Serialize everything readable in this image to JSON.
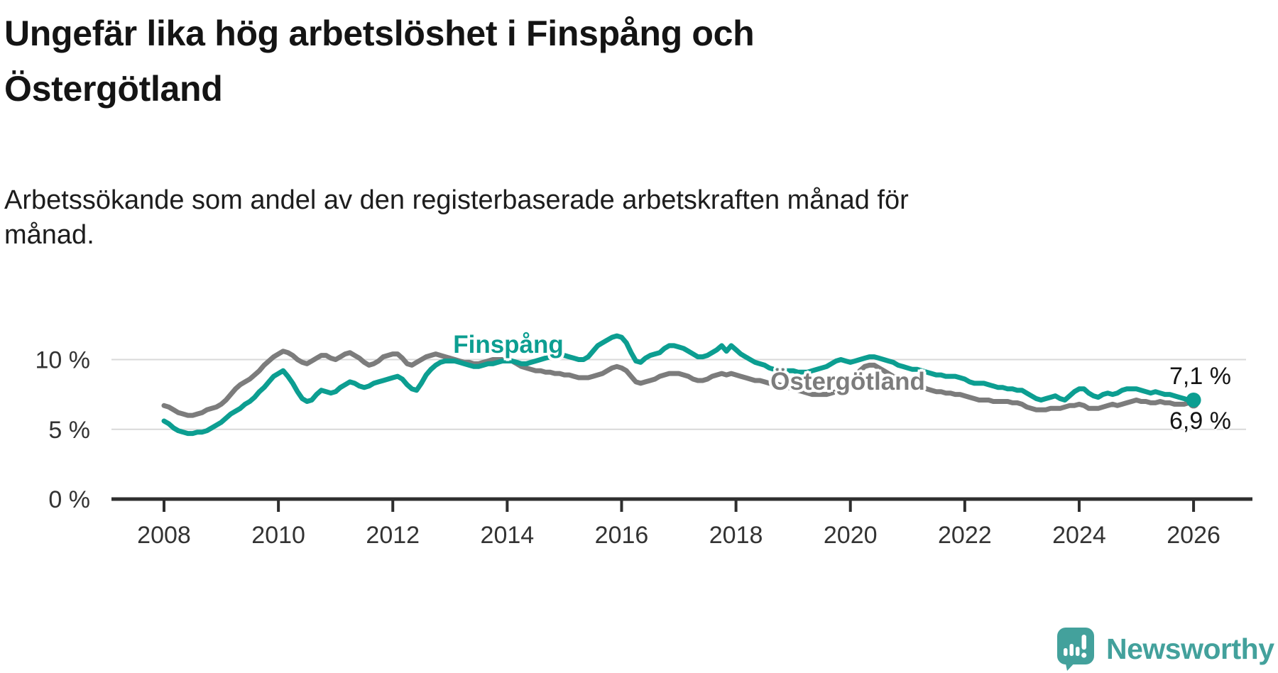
{
  "header": {
    "title_lines": [
      "Ungefär lika hög arbetslöshet i Finspång och",
      "Östergötland"
    ],
    "subtitle_lines": [
      "Arbetssökande som andel av den registerbaserade arbetskraften månad för",
      "månad."
    ]
  },
  "branding": {
    "wordmark": "Newsworthy",
    "logo_color": "#43a19c"
  },
  "colors": {
    "background": "#ffffff",
    "grid": "#d9d9d9",
    "axis": "#2e2e2e",
    "text": "#141414",
    "finspang": "#0c9e91",
    "ostergotland": "#7c7c7c"
  },
  "chart_data": {
    "type": "line",
    "unit": "%",
    "x_start_year": 2008,
    "x_interval": "monthly",
    "xticks": [
      2008,
      2010,
      2012,
      2014,
      2016,
      2018,
      2020,
      2022,
      2024,
      2026
    ],
    "yticks": [
      {
        "value": 10,
        "label": "10 %"
      },
      {
        "value": 5,
        "label": "5 %"
      },
      {
        "value": 0,
        "label": "0 %"
      }
    ],
    "ylim": [
      0,
      13.4
    ],
    "legend_position": "inline-labels",
    "grid": "horizontal-only",
    "series": [
      {
        "name": "Finspång",
        "color": "#0c9e91",
        "end_label": "7,1 %",
        "end_value": 7.1,
        "values": [
          5.6,
          5.4,
          5.1,
          4.9,
          4.8,
          4.7,
          4.7,
          4.8,
          4.8,
          4.9,
          5.1,
          5.3,
          5.5,
          5.8,
          6.1,
          6.3,
          6.5,
          6.8,
          7.0,
          7.3,
          7.7,
          8.0,
          8.4,
          8.8,
          9.0,
          9.2,
          8.8,
          8.3,
          7.7,
          7.2,
          7.0,
          7.1,
          7.5,
          7.8,
          7.7,
          7.6,
          7.7,
          8.0,
          8.2,
          8.4,
          8.3,
          8.1,
          8.0,
          8.1,
          8.3,
          8.4,
          8.5,
          8.6,
          8.7,
          8.8,
          8.6,
          8.2,
          7.9,
          7.8,
          8.3,
          8.9,
          9.3,
          9.6,
          9.8,
          9.9,
          9.9,
          9.9,
          9.8,
          9.7,
          9.6,
          9.5,
          9.5,
          9.6,
          9.7,
          9.7,
          9.8,
          9.9,
          9.9,
          9.9,
          9.8,
          9.7,
          9.7,
          9.8,
          9.9,
          10.0,
          10.1,
          10.2,
          10.3,
          10.3,
          10.3,
          10.2,
          10.1,
          10.0,
          10.0,
          10.2,
          10.6,
          11.0,
          11.2,
          11.4,
          11.6,
          11.7,
          11.6,
          11.2,
          10.5,
          9.9,
          9.8,
          10.1,
          10.3,
          10.4,
          10.5,
          10.8,
          11.0,
          11.0,
          10.9,
          10.8,
          10.6,
          10.4,
          10.2,
          10.2,
          10.3,
          10.5,
          10.7,
          11.0,
          10.6,
          11.0,
          10.7,
          10.4,
          10.2,
          10.0,
          9.8,
          9.7,
          9.6,
          9.4,
          9.3,
          9.2,
          9.2,
          9.2,
          9.2,
          9.1,
          9.1,
          9.1,
          9.2,
          9.3,
          9.4,
          9.5,
          9.7,
          9.9,
          10.0,
          9.9,
          9.8,
          9.9,
          10.0,
          10.1,
          10.2,
          10.2,
          10.1,
          10.0,
          9.9,
          9.8,
          9.6,
          9.5,
          9.4,
          9.3,
          9.3,
          9.2,
          9.1,
          9.0,
          8.9,
          8.9,
          8.8,
          8.8,
          8.8,
          8.7,
          8.6,
          8.4,
          8.3,
          8.3,
          8.3,
          8.2,
          8.1,
          8.0,
          8.0,
          7.9,
          7.9,
          7.8,
          7.8,
          7.6,
          7.4,
          7.2,
          7.1,
          7.2,
          7.3,
          7.4,
          7.2,
          7.1,
          7.4,
          7.7,
          7.9,
          7.9,
          7.6,
          7.4,
          7.3,
          7.5,
          7.6,
          7.5,
          7.6,
          7.8,
          7.9,
          7.9,
          7.9,
          7.8,
          7.7,
          7.6,
          7.7,
          7.6,
          7.5,
          7.5,
          7.4,
          7.3,
          7.2,
          7.1,
          7.1
        ]
      },
      {
        "name": "Östergötland",
        "color": "#7c7c7c",
        "end_label": "6,9 %",
        "end_value": 6.9,
        "values": [
          6.7,
          6.6,
          6.4,
          6.2,
          6.1,
          6.0,
          6.0,
          6.1,
          6.2,
          6.4,
          6.5,
          6.6,
          6.8,
          7.1,
          7.5,
          7.9,
          8.2,
          8.4,
          8.6,
          8.9,
          9.2,
          9.6,
          9.9,
          10.2,
          10.4,
          10.6,
          10.5,
          10.3,
          10.0,
          9.8,
          9.7,
          9.9,
          10.1,
          10.3,
          10.3,
          10.1,
          10.0,
          10.2,
          10.4,
          10.5,
          10.3,
          10.1,
          9.8,
          9.6,
          9.7,
          9.9,
          10.2,
          10.3,
          10.4,
          10.4,
          10.1,
          9.7,
          9.6,
          9.8,
          10.0,
          10.2,
          10.3,
          10.4,
          10.3,
          10.2,
          10.1,
          10.0,
          9.9,
          9.8,
          9.8,
          9.7,
          9.7,
          9.8,
          9.9,
          10.0,
          10.0,
          10.0,
          10.0,
          9.9,
          9.7,
          9.5,
          9.4,
          9.3,
          9.2,
          9.2,
          9.1,
          9.1,
          9.0,
          9.0,
          8.9,
          8.9,
          8.8,
          8.7,
          8.7,
          8.7,
          8.8,
          8.9,
          9.0,
          9.2,
          9.4,
          9.5,
          9.4,
          9.2,
          8.8,
          8.4,
          8.3,
          8.4,
          8.5,
          8.6,
          8.8,
          8.9,
          9.0,
          9.0,
          9.0,
          8.9,
          8.8,
          8.6,
          8.5,
          8.5,
          8.6,
          8.8,
          8.9,
          9.0,
          8.9,
          9.0,
          8.9,
          8.8,
          8.7,
          8.6,
          8.5,
          8.5,
          8.4,
          8.3,
          8.3,
          8.2,
          8.1,
          8.0,
          7.9,
          7.8,
          7.7,
          7.6,
          7.5,
          7.5,
          7.5,
          7.5,
          7.6,
          7.7,
          7.9,
          8.1,
          8.4,
          8.8,
          9.2,
          9.5,
          9.6,
          9.6,
          9.4,
          9.2,
          9.0,
          8.8,
          8.7,
          8.6,
          8.5,
          8.4,
          8.2,
          8.1,
          7.9,
          7.8,
          7.7,
          7.7,
          7.6,
          7.6,
          7.5,
          7.5,
          7.4,
          7.3,
          7.2,
          7.1,
          7.1,
          7.1,
          7.0,
          7.0,
          7.0,
          7.0,
          6.9,
          6.9,
          6.8,
          6.6,
          6.5,
          6.4,
          6.4,
          6.4,
          6.5,
          6.5,
          6.5,
          6.6,
          6.7,
          6.7,
          6.8,
          6.7,
          6.5,
          6.5,
          6.5,
          6.6,
          6.7,
          6.8,
          6.7,
          6.8,
          6.9,
          7.0,
          7.1,
          7.0,
          7.0,
          6.9,
          6.9,
          7.0,
          6.9,
          6.9,
          6.8,
          6.8,
          6.8,
          6.9,
          6.9
        ]
      }
    ]
  }
}
